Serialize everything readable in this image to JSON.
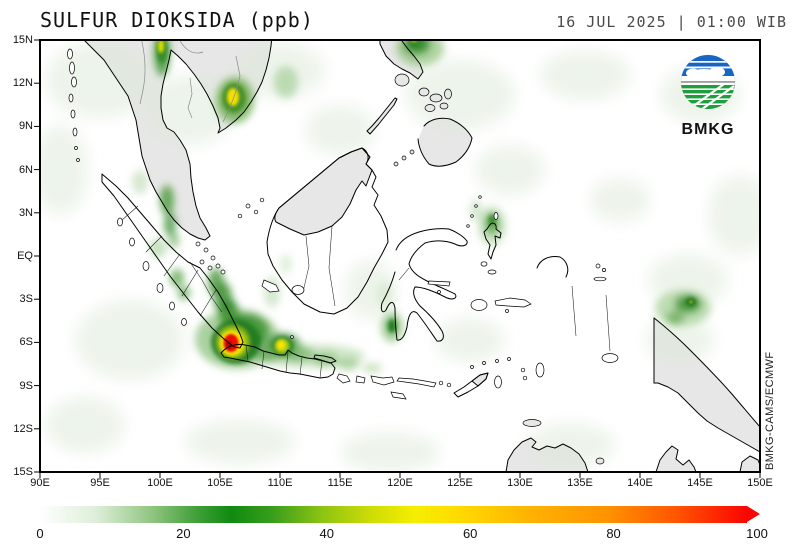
{
  "header": {
    "title": "SULFUR DIOKSIDA (ppb)",
    "timestamp": "16 JUL 2025 | 01:00 WIB"
  },
  "map": {
    "lat_ticks": [
      "15N",
      "12N",
      "9N",
      "6N",
      "3N",
      "EQ",
      "3S",
      "6S",
      "9S",
      "12S",
      "15S"
    ],
    "lon_ticks": [
      "90E",
      "95E",
      "100E",
      "105E",
      "110E",
      "115E",
      "120E",
      "125E",
      "130E",
      "135E",
      "140E",
      "145E",
      "150E"
    ],
    "credit": "BMKG-CAMS/ECMWF",
    "logo_label": "BMKG"
  },
  "colorbar": {
    "ticks": [
      "0",
      "20",
      "40",
      "60",
      "80",
      "100"
    ],
    "min": 0,
    "max": 100,
    "units": "ppb",
    "stops": [
      {
        "value": 0,
        "color": "#ffffff"
      },
      {
        "value": 8,
        "color": "#ddeed8"
      },
      {
        "value": 16,
        "color": "#8fc47f"
      },
      {
        "value": 22,
        "color": "#42a03a"
      },
      {
        "value": 27,
        "color": "#0f8a10"
      },
      {
        "value": 33,
        "color": "#3a9e1d"
      },
      {
        "value": 40,
        "color": "#8ec412"
      },
      {
        "value": 47,
        "color": "#cfdd05"
      },
      {
        "value": 53,
        "color": "#f6ee00"
      },
      {
        "value": 60,
        "color": "#ffd800"
      },
      {
        "value": 70,
        "color": "#ffb000"
      },
      {
        "value": 80,
        "color": "#ff9400"
      },
      {
        "value": 90,
        "color": "#ff5500"
      },
      {
        "value": 100,
        "color": "#fb0500"
      }
    ]
  }
}
